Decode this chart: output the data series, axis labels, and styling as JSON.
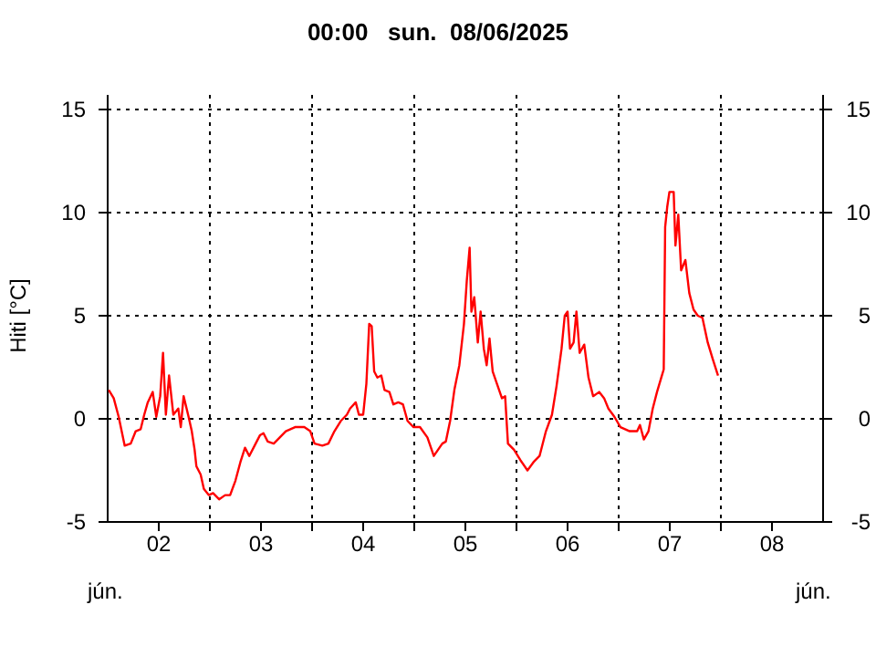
{
  "chart_data": {
    "type": "line",
    "title": "00:00   sun.  08/06/2025",
    "ylabel": "Hiti [°C]",
    "annotations": [
      "jún.",
      "jún."
    ],
    "xlim": [
      "2025-06-02T00:00",
      "2025-06-09T00:00"
    ],
    "xticks": [
      {
        "value": "2025-06-02T12:00",
        "label": "02"
      },
      {
        "value": "2025-06-03T00:00",
        "label": null
      },
      {
        "value": "2025-06-03T12:00",
        "label": "03"
      },
      {
        "value": "2025-06-04T00:00",
        "label": null
      },
      {
        "value": "2025-06-04T12:00",
        "label": "04"
      },
      {
        "value": "2025-06-05T00:00",
        "label": null
      },
      {
        "value": "2025-06-05T12:00",
        "label": "05"
      },
      {
        "value": "2025-06-06T00:00",
        "label": null
      },
      {
        "value": "2025-06-06T12:00",
        "label": "06"
      },
      {
        "value": "2025-06-07T00:00",
        "label": null
      },
      {
        "value": "2025-06-07T12:00",
        "label": "07"
      },
      {
        "value": "2025-06-08T00:00",
        "label": null
      },
      {
        "value": "2025-06-08T12:00",
        "label": "08"
      }
    ],
    "ylim": [
      -5,
      15
    ],
    "yticks": [
      -5,
      0,
      5,
      10,
      15
    ],
    "y2lim": [
      -5,
      15
    ],
    "y2ticks": [
      -5,
      0,
      5,
      10,
      15
    ],
    "grid": true,
    "marker": "none",
    "line_style": "solid",
    "x": [
      "2025-06-02T00:15",
      "2025-06-02T01:25",
      "2025-06-02T02:35",
      "2025-06-02T04:00",
      "2025-06-02T05:25",
      "2025-06-02T06:35",
      "2025-06-02T07:45",
      "2025-06-02T08:35",
      "2025-06-02T09:25",
      "2025-06-02T10:35",
      "2025-06-02T11:25",
      "2025-06-02T12:20",
      "2025-06-02T13:00",
      "2025-06-02T13:40",
      "2025-06-02T14:25",
      "2025-06-02T15:25",
      "2025-06-02T16:35",
      "2025-06-02T17:10",
      "2025-06-02T17:50",
      "2025-06-02T19:00",
      "2025-06-02T19:45",
      "2025-06-02T20:25",
      "2025-06-02T20:50",
      "2025-06-02T21:50",
      "2025-06-02T22:35",
      "2025-06-02T23:45",
      "2025-06-03T00:45",
      "2025-06-03T02:10",
      "2025-06-03T03:35",
      "2025-06-03T04:45",
      "2025-06-03T06:00",
      "2025-06-03T07:10",
      "2025-06-03T08:15",
      "2025-06-03T09:15",
      "2025-06-03T10:45",
      "2025-06-03T11:45",
      "2025-06-03T12:35",
      "2025-06-03T13:35",
      "2025-06-03T15:00",
      "2025-06-03T16:25",
      "2025-06-03T17:50",
      "2025-06-03T20:00",
      "2025-06-03T22:10",
      "2025-06-03T23:35",
      "2025-06-04T00:35",
      "2025-06-04T02:25",
      "2025-06-04T03:50",
      "2025-06-04T05:15",
      "2025-06-04T06:45",
      "2025-06-04T08:10",
      "2025-06-04T08:55",
      "2025-06-04T10:15",
      "2025-06-04T11:00",
      "2025-06-04T12:00",
      "2025-06-04T12:45",
      "2025-06-04T13:25",
      "2025-06-04T14:00",
      "2025-06-04T14:35",
      "2025-06-04T15:20",
      "2025-06-04T16:15",
      "2025-06-04T17:00",
      "2025-06-04T18:10",
      "2025-06-04T19:05",
      "2025-06-04T20:15",
      "2025-06-04T21:20",
      "2025-06-04T22:25",
      "2025-06-04T23:50",
      "2025-06-05T01:20",
      "2025-06-05T03:05",
      "2025-06-05T04:35",
      "2025-06-05T05:35",
      "2025-06-05T06:35",
      "2025-06-05T07:25",
      "2025-06-05T08:25",
      "2025-06-05T09:25",
      "2025-06-05T10:35",
      "2025-06-05T11:40",
      "2025-06-05T12:20",
      "2025-06-05T13:00",
      "2025-06-05T13:25",
      "2025-06-05T14:05",
      "2025-06-05T14:55",
      "2025-06-05T15:35",
      "2025-06-05T16:20",
      "2025-06-05T17:00",
      "2025-06-05T17:40",
      "2025-06-05T18:25",
      "2025-06-05T19:25",
      "2025-06-05T20:35",
      "2025-06-05T21:20",
      "2025-06-05T22:00",
      "2025-06-05T23:25",
      "2025-06-06T00:55",
      "2025-06-06T02:35",
      "2025-06-06T04:00",
      "2025-06-06T05:25",
      "2025-06-06T06:55",
      "2025-06-06T08:20",
      "2025-06-06T09:25",
      "2025-06-06T10:35",
      "2025-06-06T11:20",
      "2025-06-06T12:00",
      "2025-06-06T12:35",
      "2025-06-06T13:25",
      "2025-06-06T14:05",
      "2025-06-06T14:50",
      "2025-06-06T15:55",
      "2025-06-06T16:55",
      "2025-06-06T18:00",
      "2025-06-06T19:25",
      "2025-06-06T20:35",
      "2025-06-06T21:35",
      "2025-06-06T23:00",
      "2025-06-07T00:25",
      "2025-06-07T02:35",
      "2025-06-07T04:20",
      "2025-06-07T05:00",
      "2025-06-07T05:55",
      "2025-06-07T07:00",
      "2025-06-07T08:00",
      "2025-06-07T09:00",
      "2025-06-07T10:00",
      "2025-06-07T10:35",
      "2025-06-07T10:55",
      "2025-06-07T11:25",
      "2025-06-07T11:55",
      "2025-06-07T12:55",
      "2025-06-07T13:20",
      "2025-06-07T14:00",
      "2025-06-07T14:40",
      "2025-06-07T15:40",
      "2025-06-07T16:35",
      "2025-06-07T17:35",
      "2025-06-07T18:35",
      "2025-06-07T19:40",
      "2025-06-07T20:55",
      "2025-06-07T22:05",
      "2025-06-07T23:20"
    ],
    "series": [
      {
        "color": "#ff0000",
        "values": [
          1.4,
          1.0,
          0.1,
          -1.3,
          -1.2,
          -0.6,
          -0.5,
          0.2,
          0.8,
          1.3,
          0.1,
          1.1,
          3.2,
          0.2,
          2.1,
          0.2,
          0.5,
          -0.4,
          1.1,
          0.1,
          -0.6,
          -1.5,
          -2.3,
          -2.7,
          -3.4,
          -3.7,
          -3.6,
          -3.9,
          -3.7,
          -3.7,
          -3.0,
          -2.1,
          -1.4,
          -1.8,
          -1.2,
          -0.8,
          -0.7,
          -1.1,
          -1.2,
          -0.9,
          -0.6,
          -0.4,
          -0.4,
          -0.6,
          -1.2,
          -1.3,
          -1.2,
          -0.6,
          -0.1,
          0.2,
          0.5,
          0.8,
          0.2,
          0.2,
          1.7,
          4.6,
          4.5,
          2.3,
          2.0,
          2.1,
          1.4,
          1.3,
          0.7,
          0.8,
          0.7,
          -0.1,
          -0.4,
          -0.4,
          -0.9,
          -1.8,
          -1.5,
          -1.2,
          -1.1,
          -0.1,
          1.4,
          2.6,
          4.6,
          6.7,
          8.3,
          5.2,
          5.9,
          3.7,
          5.2,
          3.4,
          2.6,
          3.9,
          2.3,
          1.7,
          1.0,
          1.1,
          -1.2,
          -1.5,
          -2.0,
          -2.5,
          -2.1,
          -1.8,
          -0.6,
          0.2,
          1.6,
          3.4,
          5.0,
          5.2,
          3.4,
          3.7,
          5.2,
          3.2,
          3.6,
          2.0,
          1.1,
          1.3,
          1.0,
          0.5,
          0.1,
          -0.4,
          -0.6,
          -0.6,
          -0.3,
          -1.0,
          -0.6,
          0.5,
          1.3,
          2.0,
          2.4,
          9.3,
          10.3,
          11.0,
          11.0,
          8.4,
          9.9,
          7.2,
          7.7,
          6.1,
          5.3,
          5.0,
          4.9,
          3.7,
          2.9,
          2.1
        ]
      }
    ]
  }
}
